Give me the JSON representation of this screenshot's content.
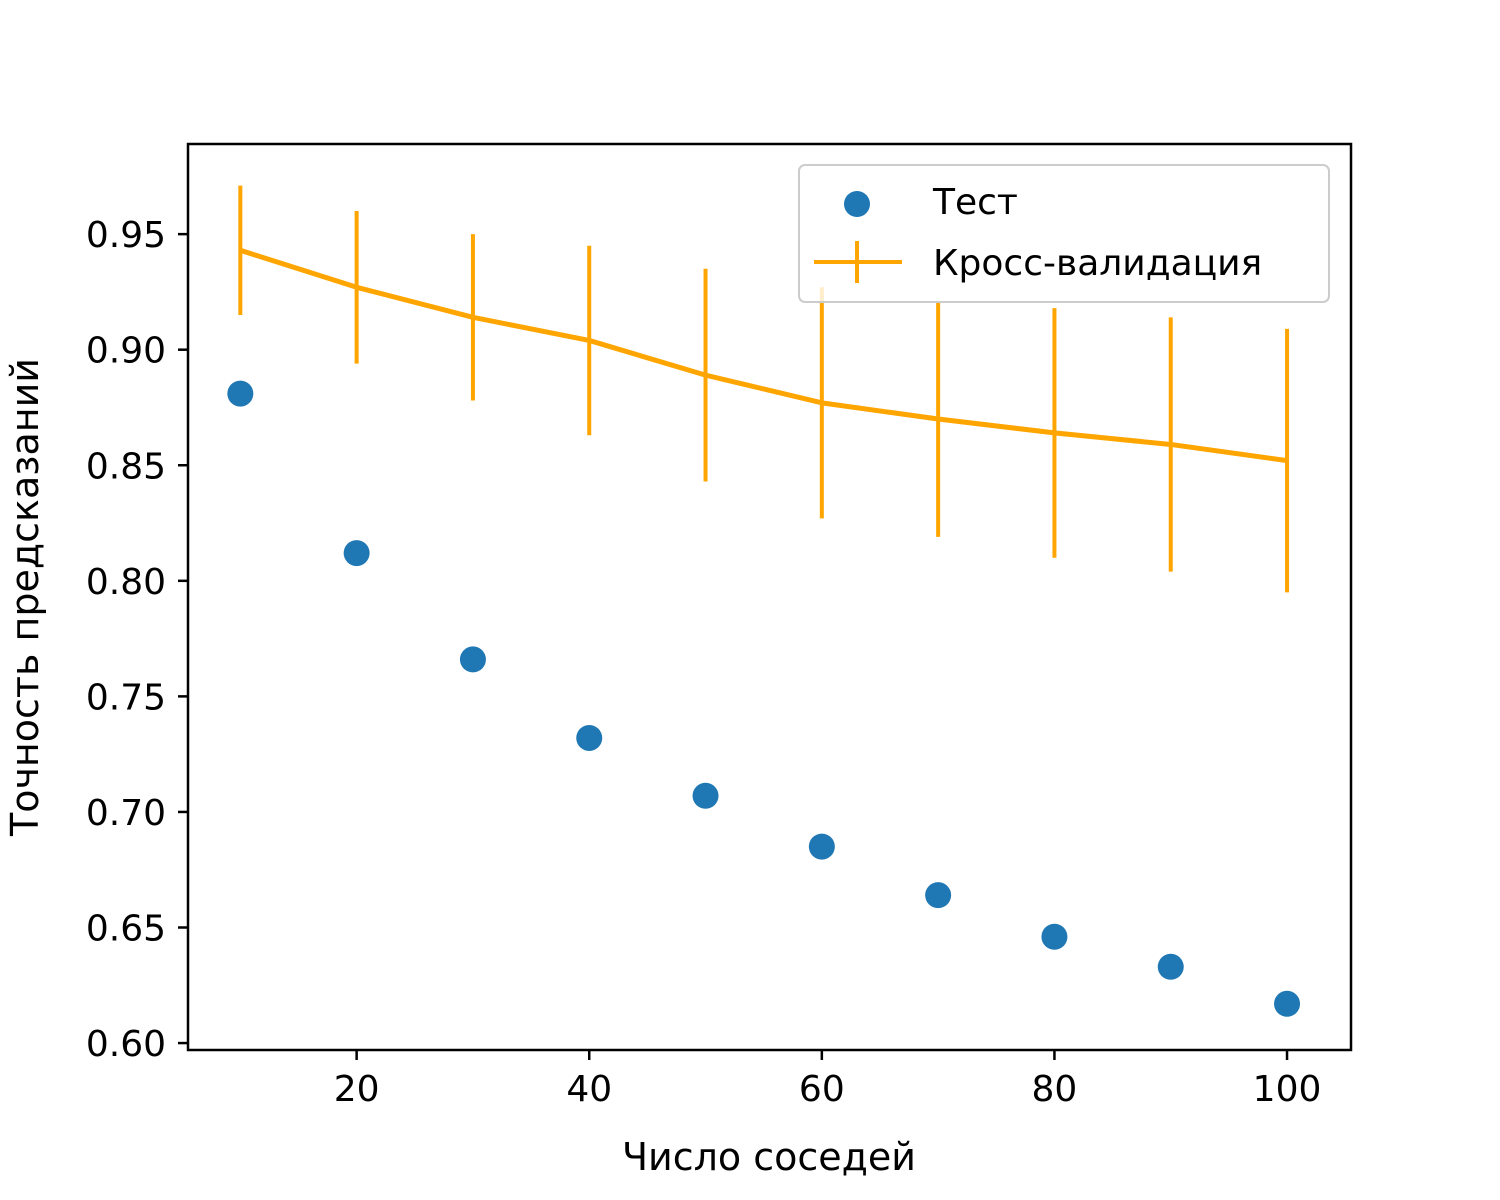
{
  "chart_data": {
    "type": "scatter",
    "title": "",
    "xlabel": "Число соседей",
    "ylabel": "Точность предсказаний",
    "xlim": [
      5.5,
      105.5
    ],
    "ylim": [
      0.597,
      0.989
    ],
    "xticks": [
      {
        "value": 20,
        "label": "20"
      },
      {
        "value": 40,
        "label": "40"
      },
      {
        "value": 60,
        "label": "60"
      },
      {
        "value": 80,
        "label": "80"
      },
      {
        "value": 100,
        "label": "100"
      }
    ],
    "yticks": [
      {
        "value": 0.6,
        "label": "0.60"
      },
      {
        "value": 0.65,
        "label": "0.65"
      },
      {
        "value": 0.7,
        "label": "0.70"
      },
      {
        "value": 0.75,
        "label": "0.75"
      },
      {
        "value": 0.8,
        "label": "0.80"
      },
      {
        "value": 0.85,
        "label": "0.85"
      },
      {
        "value": 0.9,
        "label": "0.90"
      },
      {
        "value": 0.95,
        "label": "0.95"
      }
    ],
    "grid": false,
    "legend_position": "top-right",
    "series": [
      {
        "name": "Тест",
        "kind": "scatter",
        "color": "#1f77b4",
        "x": [
          10,
          20,
          30,
          40,
          50,
          60,
          70,
          80,
          90,
          100
        ],
        "y": [
          0.881,
          0.812,
          0.766,
          0.732,
          0.707,
          0.685,
          0.664,
          0.646,
          0.633,
          0.617
        ]
      },
      {
        "name": "Кросс-валидация",
        "kind": "errorbar",
        "color": "#ffa500",
        "x": [
          10,
          20,
          30,
          40,
          50,
          60,
          70,
          80,
          90,
          100
        ],
        "y": [
          0.943,
          0.927,
          0.914,
          0.904,
          0.889,
          0.877,
          0.87,
          0.864,
          0.859,
          0.852
        ],
        "yerr": [
          0.028,
          0.033,
          0.036,
          0.041,
          0.046,
          0.05,
          0.051,
          0.054,
          0.055,
          0.057
        ]
      }
    ]
  }
}
